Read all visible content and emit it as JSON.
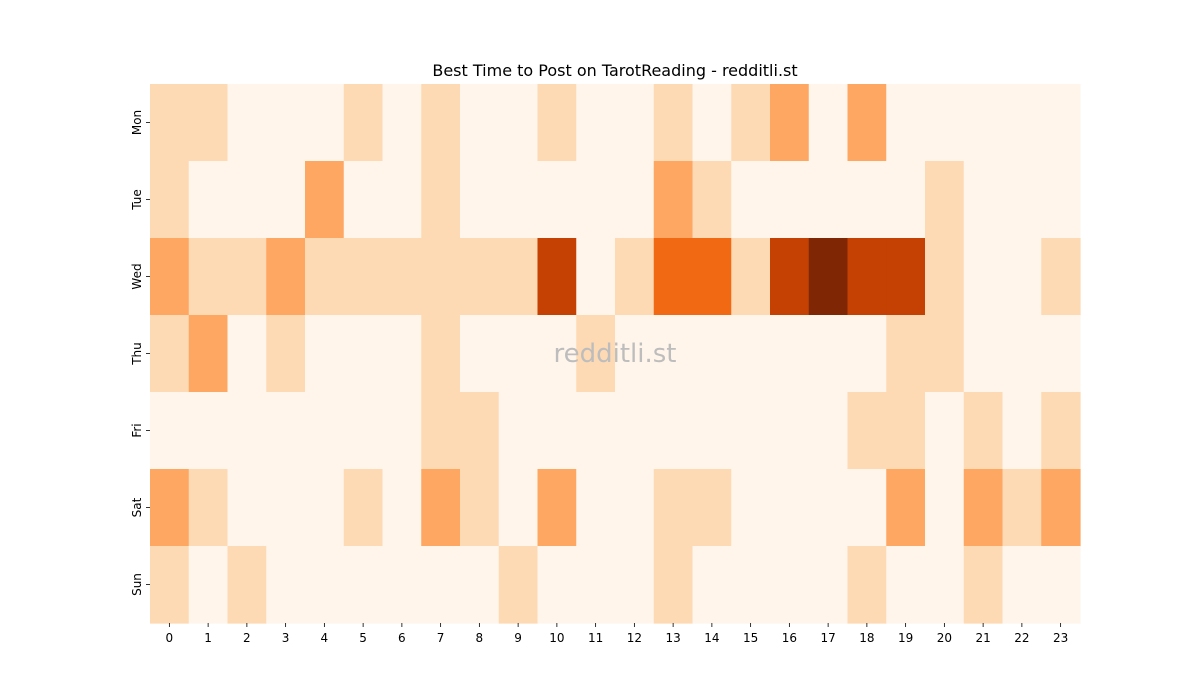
{
  "chart_data": {
    "type": "heatmap",
    "title": "Best Time to Post on TarotReading - redditli.st",
    "watermark": "redditli.st",
    "xlabel": "",
    "ylabel": "",
    "x_categories": [
      "0",
      "1",
      "2",
      "3",
      "4",
      "5",
      "6",
      "7",
      "8",
      "9",
      "10",
      "11",
      "12",
      "13",
      "14",
      "15",
      "16",
      "17",
      "18",
      "19",
      "20",
      "21",
      "22",
      "23"
    ],
    "y_categories": [
      "Mon",
      "Tue",
      "Wed",
      "Thu",
      "Fri",
      "Sat",
      "Sun"
    ],
    "color_scale": [
      "#fff5eb",
      "#fdd9b4",
      "#fda762",
      "#f16913",
      "#c44103",
      "#7f2704"
    ],
    "values": [
      [
        1,
        1,
        0,
        0,
        0,
        1,
        0,
        1,
        0,
        0,
        1,
        0,
        0,
        1,
        0,
        1,
        2,
        0,
        2,
        0,
        0,
        0,
        0,
        0
      ],
      [
        1,
        0,
        0,
        0,
        2,
        0,
        0,
        1,
        0,
        0,
        0,
        0,
        0,
        2,
        1,
        0,
        0,
        0,
        0,
        0,
        1,
        0,
        0,
        0
      ],
      [
        2,
        1,
        1,
        2,
        1,
        1,
        1,
        1,
        1,
        1,
        4,
        0,
        1,
        3,
        3,
        1,
        4,
        5,
        4,
        4,
        1,
        0,
        0,
        1
      ],
      [
        1,
        2,
        0,
        1,
        0,
        0,
        0,
        1,
        0,
        0,
        0,
        1,
        0,
        0,
        0,
        0,
        0,
        0,
        0,
        1,
        1,
        0,
        0,
        0
      ],
      [
        0,
        0,
        0,
        0,
        0,
        0,
        0,
        1,
        1,
        0,
        0,
        0,
        0,
        0,
        0,
        0,
        0,
        0,
        1,
        1,
        0,
        1,
        0,
        1
      ],
      [
        2,
        1,
        0,
        0,
        0,
        1,
        0,
        2,
        1,
        0,
        2,
        0,
        0,
        1,
        1,
        0,
        0,
        0,
        0,
        2,
        0,
        2,
        1,
        2
      ],
      [
        1,
        0,
        1,
        0,
        0,
        0,
        0,
        0,
        0,
        1,
        0,
        0,
        0,
        1,
        0,
        0,
        0,
        0,
        1,
        0,
        0,
        1,
        0,
        0
      ]
    ]
  }
}
